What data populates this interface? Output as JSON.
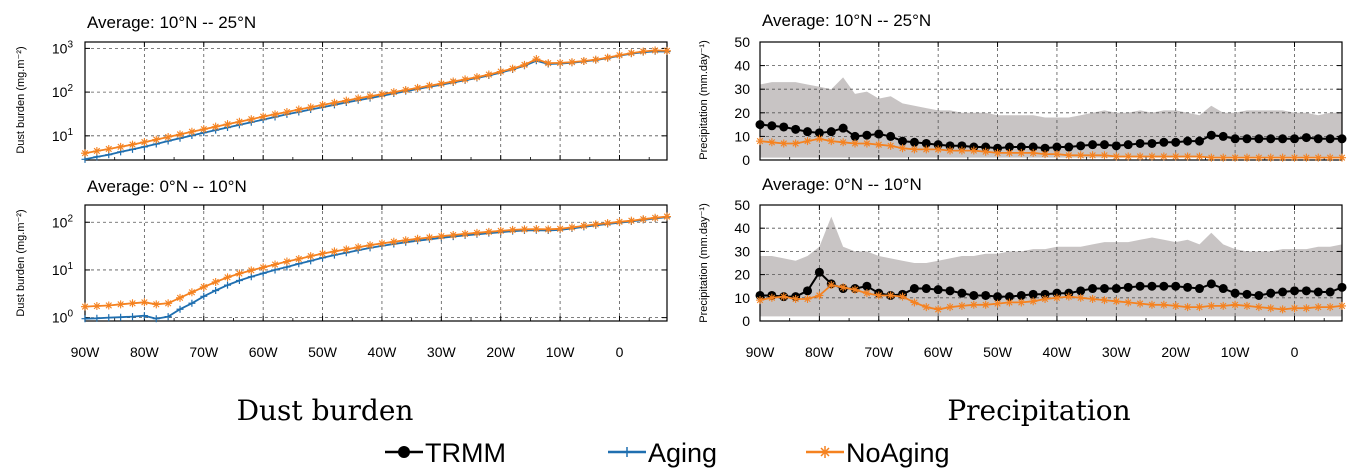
{
  "panel_titles": [
    "Average: 10°N -- 25°N",
    "Average: 0°N -- 10°N",
    "Average: 10°N -- 25°N",
    "Average: 0°N -- 10°N"
  ],
  "dust_ylabel": "Dust burden (mg.m⁻²)",
  "precip_ylabel": "Precipitation (mm.day⁻¹)",
  "captions": {
    "left": "Dust burden",
    "right": "Precipitation"
  },
  "legend": [
    "TRMM",
    "Aging",
    "NoAging"
  ],
  "colors": {
    "trmm": "#000000",
    "aging": "#1f6fb0",
    "noaging": "#f58220",
    "shade": "#c8c4c4"
  },
  "xtick_labels": [
    "90W",
    "80W",
    "70W",
    "60W",
    "50W",
    "40W",
    "30W",
    "20W",
    "10W",
    "0"
  ],
  "chart_data": [
    {
      "type": "line",
      "title": "Average: 10°N -- 25°N",
      "ylabel": "Dust burden (mg.m⁻²)",
      "yscale": "log",
      "ylim": [
        2.8,
        1400
      ],
      "yticks": [
        10,
        100,
        1000
      ],
      "ytick_labels": [
        "10¹",
        "10²",
        "10³"
      ],
      "x": [
        -90,
        -88,
        -86,
        -84,
        -82,
        -80,
        -78,
        -76,
        -74,
        -72,
        -70,
        -68,
        -66,
        -64,
        -62,
        -60,
        -58,
        -56,
        -54,
        -52,
        -50,
        -48,
        -46,
        -44,
        -42,
        -40,
        -38,
        -36,
        -34,
        -32,
        -30,
        -28,
        -26,
        -24,
        -22,
        -20,
        -18,
        -16,
        -14,
        -12,
        -10,
        -8,
        -6,
        -4,
        -2,
        0,
        2,
        4,
        6,
        8
      ],
      "xlim": [
        -90,
        8
      ],
      "series": [
        {
          "name": "Aging",
          "values": [
            2.9,
            3.3,
            3.7,
            4.3,
            4.9,
            5.6,
            6.5,
            7.6,
            8.8,
            10.2,
            11.8,
            13.5,
            15.5,
            17.8,
            20.5,
            23.5,
            27,
            31,
            35,
            40,
            45,
            51,
            58,
            65,
            73,
            82,
            93,
            105,
            118,
            132,
            148,
            166,
            186,
            210,
            240,
            280,
            330,
            400,
            520,
            440,
            450,
            470,
            500,
            540,
            600,
            680,
            760,
            820,
            860,
            850
          ]
        },
        {
          "name": "NoAging",
          "values": [
            4.0,
            4.5,
            5.0,
            5.6,
            6.3,
            7.2,
            8.2,
            9.4,
            10.8,
            12.4,
            14.2,
            16.2,
            18.5,
            21,
            24,
            27.5,
            31,
            35,
            40,
            45,
            51,
            57,
            64,
            72,
            80,
            89,
            100,
            112,
            125,
            140,
            156,
            175,
            195,
            220,
            252,
            295,
            345,
            420,
            570,
            460,
            465,
            485,
            515,
            555,
            615,
            700,
            780,
            850,
            900,
            880
          ]
        }
      ]
    },
    {
      "type": "line",
      "title": "Average: 0°N -- 10°N",
      "ylabel": "Dust burden (mg.m⁻²)",
      "yscale": "log",
      "ylim": [
        0.85,
        230
      ],
      "yticks": [
        1,
        10,
        100
      ],
      "ytick_labels": [
        "10⁰",
        "10¹",
        "10²"
      ],
      "x": [
        -90,
        -88,
        -86,
        -84,
        -82,
        -80,
        -78,
        -76,
        -74,
        -72,
        -70,
        -68,
        -66,
        -64,
        -62,
        -60,
        -58,
        -56,
        -54,
        -52,
        -50,
        -48,
        -46,
        -44,
        -42,
        -40,
        -38,
        -36,
        -34,
        -32,
        -30,
        -28,
        -26,
        -24,
        -22,
        -20,
        -18,
        -16,
        -14,
        -12,
        -10,
        -8,
        -6,
        -4,
        -2,
        0,
        2,
        4,
        6,
        8
      ],
      "xlim": [
        -90,
        8
      ],
      "series": [
        {
          "name": "Aging",
          "values": [
            0.95,
            0.97,
            1.0,
            1.02,
            1.05,
            1.1,
            0.95,
            1.05,
            1.5,
            2.0,
            2.8,
            3.7,
            4.8,
            6.0,
            7.2,
            8.5,
            10,
            11.5,
            13.5,
            15.5,
            18,
            20.5,
            23,
            26,
            29,
            32,
            35,
            38,
            41,
            44,
            47,
            50,
            53,
            56,
            59,
            62,
            65,
            67,
            68,
            67,
            69,
            74,
            80,
            86,
            92,
            98,
            104,
            112,
            120,
            128
          ]
        },
        {
          "name": "NoAging",
          "values": [
            1.7,
            1.75,
            1.8,
            1.9,
            2.0,
            2.1,
            1.9,
            2.0,
            2.6,
            3.4,
            4.4,
            5.6,
            7.0,
            8.4,
            9.8,
            11.3,
            13,
            15,
            17,
            19.5,
            22,
            24.5,
            27,
            30,
            33,
            36,
            39,
            42,
            45,
            48,
            51,
            54,
            57,
            60,
            63,
            66,
            69,
            71,
            72,
            71,
            73,
            78,
            84,
            90,
            96,
            102,
            108,
            116,
            124,
            132
          ]
        }
      ]
    },
    {
      "type": "line",
      "title": "Average: 10°N -- 25°N",
      "ylabel": "Precipitation (mm.day⁻¹)",
      "ylim": [
        0,
        50
      ],
      "yticks": [
        0,
        10,
        20,
        30,
        40,
        50
      ],
      "ytick_labels": [
        "0",
        "10",
        "20",
        "30",
        "40",
        "50"
      ],
      "x": [
        -90,
        -88,
        -86,
        -84,
        -82,
        -80,
        -78,
        -76,
        -74,
        -72,
        -70,
        -68,
        -66,
        -64,
        -62,
        -60,
        -58,
        -56,
        -54,
        -52,
        -50,
        -48,
        -46,
        -44,
        -42,
        -40,
        -38,
        -36,
        -34,
        -32,
        -30,
        -28,
        -26,
        -24,
        -22,
        -20,
        -18,
        -16,
        -14,
        -12,
        -10,
        -8,
        -6,
        -4,
        -2,
        0,
        2,
        4,
        6,
        8
      ],
      "xlim": [
        -90,
        8
      ],
      "band": {
        "name": "range",
        "upper": [
          32,
          33,
          33,
          33,
          32,
          31,
          30,
          35,
          28,
          29,
          26,
          27,
          24,
          23,
          22,
          21,
          21,
          20,
          20,
          20,
          19,
          19,
          19,
          19,
          18,
          18,
          18,
          19,
          20,
          21,
          20,
          20,
          21,
          20,
          21,
          21,
          20,
          19,
          23,
          20,
          20,
          21,
          21,
          21,
          21,
          20,
          20,
          19,
          20,
          20
        ],
        "lower": [
          1,
          1,
          1,
          1,
          1,
          1,
          1,
          1,
          1,
          1,
          1,
          1,
          1,
          1,
          1,
          1,
          1,
          1,
          1,
          1,
          1,
          1,
          1,
          1,
          1,
          1,
          1,
          1,
          1,
          1,
          1,
          1,
          1,
          1,
          1,
          1,
          1,
          1,
          1,
          1,
          1,
          1,
          1,
          1,
          1,
          1,
          1,
          1,
          1,
          1
        ]
      },
      "series": [
        {
          "name": "TRMM",
          "values": [
            15,
            14.5,
            14,
            13,
            12,
            11.5,
            12,
            13.5,
            10,
            10.5,
            11,
            10,
            8,
            7.5,
            7,
            6.5,
            6,
            6,
            5.5,
            5.5,
            5,
            5.5,
            5.5,
            5.5,
            5,
            5.5,
            5.5,
            6,
            6.5,
            6.5,
            6,
            6.5,
            7,
            7,
            7.5,
            7.5,
            8,
            8,
            10.5,
            10,
            9,
            9,
            9,
            9,
            9,
            9,
            9.5,
            9,
            9,
            9
          ]
        },
        {
          "name": "NoAging",
          "values": [
            8,
            7.5,
            7,
            7,
            8,
            9,
            8,
            7.5,
            7,
            7,
            6.5,
            6,
            5,
            4.5,
            4.5,
            4.5,
            4,
            4,
            4,
            3.5,
            3,
            3,
            3,
            3,
            2.5,
            2.5,
            2,
            2,
            2,
            2,
            1.5,
            1.5,
            1.5,
            1.5,
            1.5,
            1.5,
            1.5,
            1.5,
            1,
            1,
            1,
            1,
            1,
            1,
            1,
            1,
            1,
            1,
            1,
            1
          ]
        }
      ]
    },
    {
      "type": "line",
      "title": "Average: 0°N -- 10°N",
      "ylabel": "Precipitation (mm.day⁻¹)",
      "ylim": [
        0,
        50
      ],
      "yticks": [
        0,
        10,
        20,
        30,
        40,
        50
      ],
      "ytick_labels": [
        "0",
        "10",
        "20",
        "30",
        "40",
        "50"
      ],
      "x": [
        -90,
        -88,
        -86,
        -84,
        -82,
        -80,
        -78,
        -76,
        -74,
        -72,
        -70,
        -68,
        -66,
        -64,
        -62,
        -60,
        -58,
        -56,
        -54,
        -52,
        -50,
        -48,
        -46,
        -44,
        -42,
        -40,
        -38,
        -36,
        -34,
        -32,
        -30,
        -28,
        -26,
        -24,
        -22,
        -20,
        -18,
        -16,
        -14,
        -12,
        -10,
        -8,
        -6,
        -4,
        -2,
        0,
        2,
        4,
        6,
        8
      ],
      "xlim": [
        -90,
        8
      ],
      "band": {
        "name": "range",
        "upper": [
          28,
          28,
          27,
          26,
          28,
          32,
          45,
          32,
          30,
          30,
          28,
          27,
          26,
          25,
          25,
          26,
          27,
          28,
          28,
          29,
          29,
          30,
          30,
          31,
          31,
          32,
          32,
          32,
          33,
          34,
          34,
          34,
          35,
          36,
          35,
          34,
          35,
          33,
          38,
          33,
          31,
          30,
          30,
          30,
          31,
          31,
          31,
          32,
          32,
          33
        ],
        "lower": [
          2,
          2,
          2,
          2,
          2,
          2,
          2,
          2,
          2,
          2,
          2,
          2,
          2,
          2,
          2,
          2,
          2,
          2,
          2,
          2,
          2,
          2,
          2,
          2,
          2,
          2,
          2,
          2,
          2,
          2,
          2,
          2,
          2,
          2,
          2,
          2,
          2,
          2,
          2,
          2,
          2,
          2,
          2,
          2,
          2,
          2,
          2,
          2,
          2,
          2
        ]
      },
      "series": [
        {
          "name": "TRMM",
          "values": [
            11,
            11,
            10.5,
            10.5,
            13,
            21,
            16,
            14,
            14,
            15,
            12,
            11,
            11.5,
            14,
            14,
            13.5,
            13,
            12,
            11,
            11,
            10.5,
            10.5,
            11,
            11.5,
            11.5,
            12,
            12,
            13,
            14,
            14,
            14,
            14.5,
            15,
            15,
            15,
            15,
            14.5,
            14,
            16,
            14,
            12,
            11.5,
            11,
            12,
            12.5,
            13,
            13,
            12.5,
            12.5,
            14.5
          ]
        },
        {
          "name": "NoAging",
          "values": [
            9,
            10,
            10.5,
            9.5,
            9.5,
            11,
            15.5,
            14.5,
            13.5,
            12,
            11,
            11,
            10.5,
            8,
            6,
            5,
            6,
            6.5,
            7,
            7,
            7.5,
            8,
            8,
            8.5,
            9.5,
            10,
            10.5,
            10,
            9.5,
            9,
            8.5,
            8,
            7.5,
            7,
            7,
            6.5,
            6,
            6,
            6.5,
            6.5,
            7,
            6.5,
            6,
            5.5,
            5,
            5.5,
            5.5,
            6,
            6,
            6.5
          ]
        }
      ]
    }
  ]
}
